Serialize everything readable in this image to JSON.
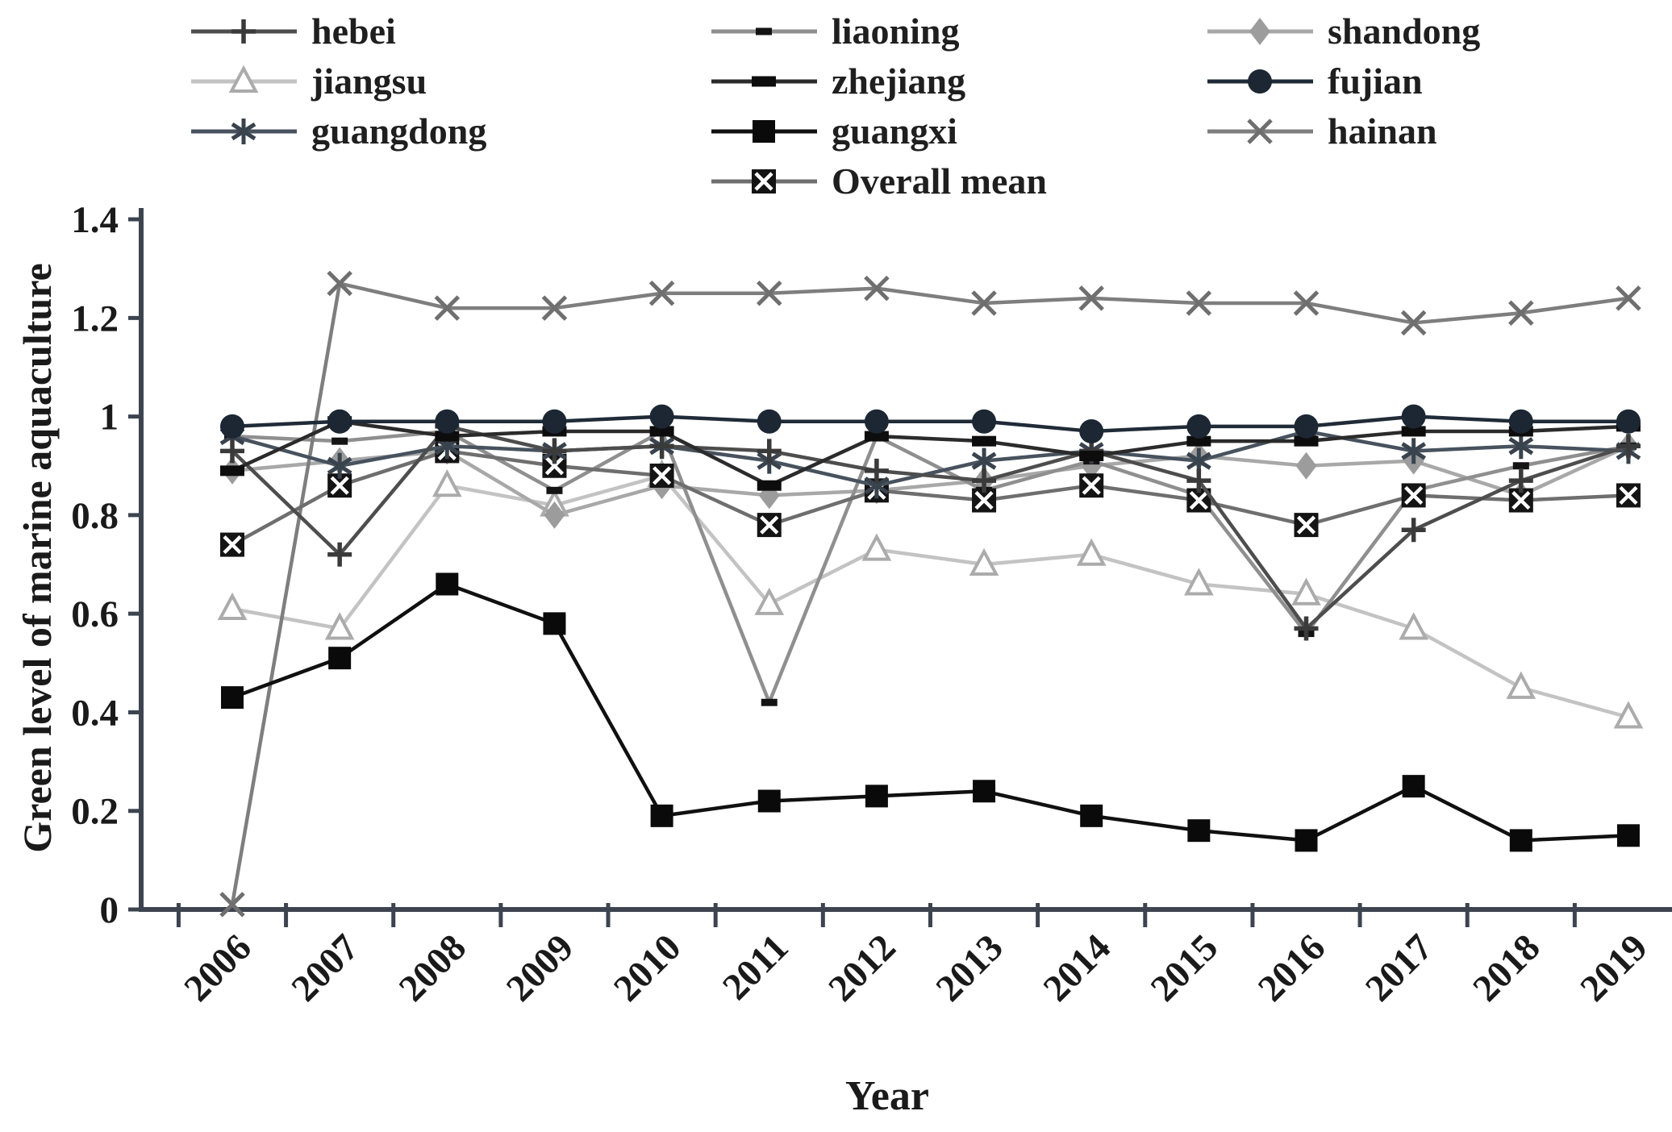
{
  "chart_data": {
    "type": "line",
    "title": "",
    "xlabel": "Year",
    "ylabel": "Green level of marine aquaculture",
    "categories": [
      "2006",
      "2007",
      "2008",
      "2009",
      "2010",
      "2011",
      "2012",
      "2013",
      "2014",
      "2015",
      "2016",
      "2017",
      "2018",
      "2019"
    ],
    "ylim": [
      0,
      1.4
    ],
    "y_ticks": [
      0,
      0.2,
      0.4,
      0.6,
      0.8,
      1,
      1.2,
      1.4
    ],
    "y_tick_labels": [
      "0",
      "0.2",
      "0.4",
      "0.6",
      "0.8",
      "1",
      "1.2",
      "1.4"
    ],
    "grid": false,
    "legend_position": "top",
    "series": [
      {
        "name": "hebei",
        "marker": "plus",
        "color": "#4d4d4d",
        "marker_color": "#3a3a3a",
        "values": [
          0.93,
          0.72,
          0.98,
          0.93,
          0.94,
          0.93,
          0.89,
          0.87,
          0.93,
          0.87,
          0.57,
          0.77,
          0.87,
          0.94
        ]
      },
      {
        "name": "liaoning",
        "marker": "dash-small",
        "color": "#8f8f8f",
        "marker_color": "#141414",
        "values": [
          0.96,
          0.95,
          0.97,
          0.85,
          0.97,
          0.42,
          0.96,
          0.85,
          0.91,
          0.84,
          0.56,
          0.85,
          0.9,
          0.94
        ]
      },
      {
        "name": "shandong",
        "marker": "diamond",
        "color": "#a8a8a8",
        "marker_color": "#9c9c9c",
        "values": [
          0.89,
          0.91,
          0.93,
          0.8,
          0.86,
          0.84,
          0.85,
          0.87,
          0.9,
          0.92,
          0.9,
          0.91,
          0.84,
          0.94
        ]
      },
      {
        "name": "jiangsu",
        "marker": "triangle-open",
        "color": "#c3c3c3",
        "marker_color": "#ababab",
        "values": [
          0.61,
          0.57,
          0.86,
          0.82,
          0.88,
          0.62,
          0.73,
          0.7,
          0.72,
          0.66,
          0.64,
          0.57,
          0.45,
          0.39
        ]
      },
      {
        "name": "zhejiang",
        "marker": "dash-large",
        "color": "#2b2b2b",
        "marker_color": "#0d0d0d",
        "values": [
          0.89,
          0.99,
          0.96,
          0.97,
          0.97,
          0.86,
          0.96,
          0.95,
          0.92,
          0.95,
          0.95,
          0.97,
          0.97,
          0.98
        ]
      },
      {
        "name": "fujian",
        "marker": "circle",
        "color": "#202b38",
        "marker_color": "#1c2733",
        "values": [
          0.98,
          0.99,
          0.99,
          0.99,
          1.0,
          0.99,
          0.99,
          0.99,
          0.97,
          0.98,
          0.98,
          1.0,
          0.99,
          0.99
        ]
      },
      {
        "name": "guangdong",
        "marker": "asterisk",
        "color": "#47525e",
        "marker_color": "#39434e",
        "values": [
          0.96,
          0.9,
          0.94,
          0.93,
          0.94,
          0.91,
          0.86,
          0.91,
          0.93,
          0.91,
          0.97,
          0.93,
          0.94,
          0.93
        ]
      },
      {
        "name": "guangxi",
        "marker": "square",
        "color": "#101010",
        "marker_color": "#0a0a0a",
        "values": [
          0.43,
          0.51,
          0.66,
          0.58,
          0.19,
          0.22,
          0.23,
          0.24,
          0.19,
          0.16,
          0.14,
          0.25,
          0.14,
          0.15
        ]
      },
      {
        "name": "hainan",
        "marker": "x",
        "color": "#7e7e7e",
        "marker_color": "#6f6f6f",
        "values": [
          0.01,
          1.27,
          1.22,
          1.22,
          1.25,
          1.25,
          1.26,
          1.23,
          1.24,
          1.23,
          1.23,
          1.19,
          1.21,
          1.24
        ]
      },
      {
        "name": "Overall mean",
        "marker": "boxed-x",
        "color": "#6e6e6e",
        "marker_color": "#141414",
        "values": [
          0.74,
          0.86,
          0.93,
          0.9,
          0.88,
          0.78,
          0.85,
          0.83,
          0.86,
          0.83,
          0.78,
          0.84,
          0.83,
          0.84
        ]
      }
    ],
    "legend_rows": [
      [
        "hebei",
        "liaoning",
        "shandong"
      ],
      [
        "jiangsu",
        "zhejiang",
        "fujian"
      ],
      [
        "guangdong",
        "guangxi",
        "hainan"
      ],
      [
        "Overall mean"
      ]
    ]
  }
}
